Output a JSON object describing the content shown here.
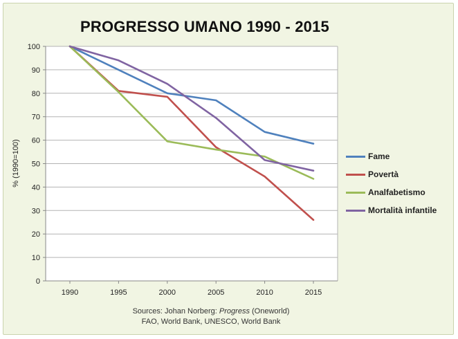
{
  "chart_data": {
    "type": "line",
    "title": "PROGRESSO UMANO 1990 - 2015",
    "ylabel": "% (1990=100)",
    "xlabel": "",
    "x": [
      1990,
      1995,
      2000,
      2005,
      2010,
      2015
    ],
    "ylim": [
      0,
      100
    ],
    "yticks": [
      0,
      10,
      20,
      30,
      40,
      50,
      60,
      70,
      80,
      90,
      100
    ],
    "grid": true,
    "legend_position": "right",
    "series": [
      {
        "name": "Fame",
        "color": "#4f81bd",
        "values": [
          100,
          90,
          80,
          77,
          63.5,
          58.5
        ]
      },
      {
        "name": "Povertà",
        "color": "#c0504d",
        "values": [
          100,
          81,
          78.5,
          57,
          44.5,
          26
        ]
      },
      {
        "name": "Analfabetismo",
        "color": "#9bbb59",
        "values": [
          100,
          80.5,
          59.5,
          56,
          53,
          43.5
        ]
      },
      {
        "name": "Mortalità infantile",
        "color": "#8064a2",
        "values": [
          100,
          94,
          84,
          69.5,
          51.5,
          47
        ]
      }
    ],
    "source_line1_prefix": "Sources: Johan Norberg: ",
    "source_line1_italic": "Progress",
    "source_line1_suffix": " (Oneworld)",
    "source_line2": "FAO, World Bank, UNESCO, World Bank"
  }
}
